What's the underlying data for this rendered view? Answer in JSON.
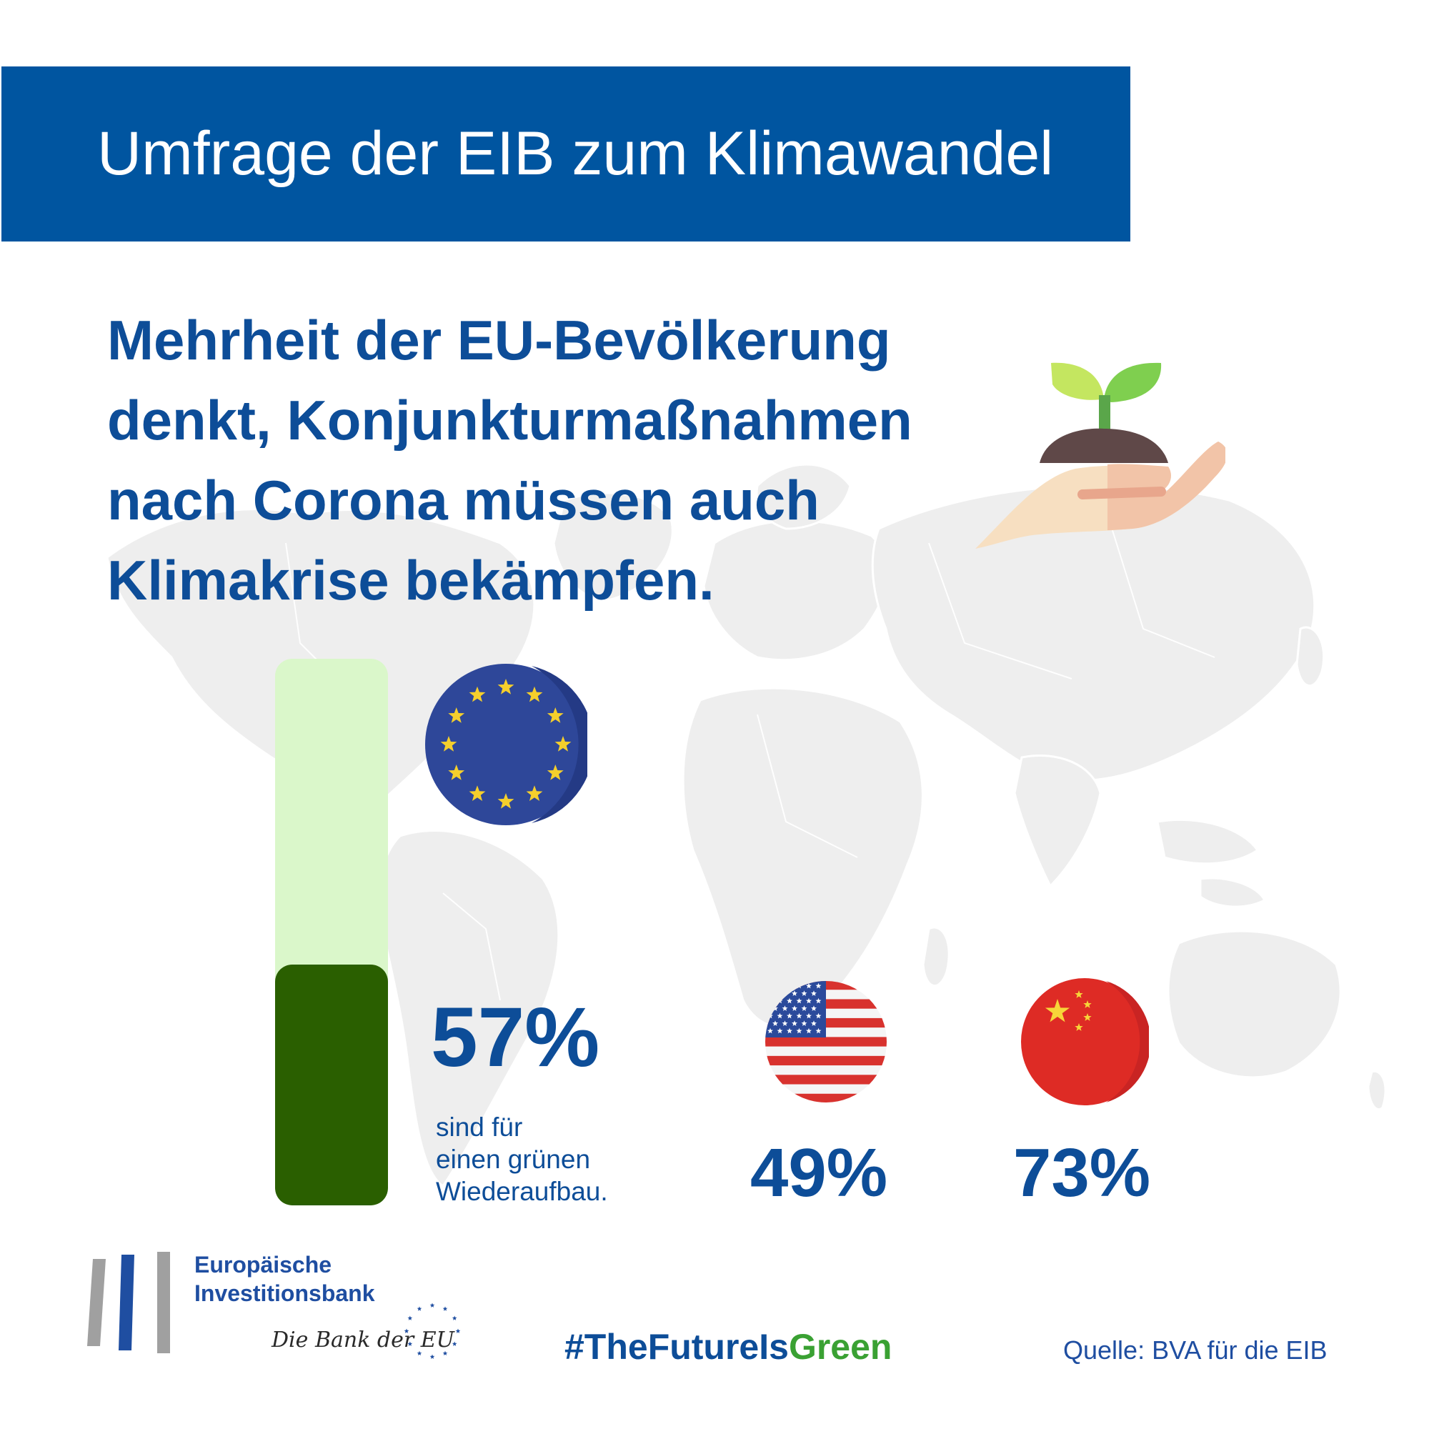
{
  "header": {
    "title": "Umfrage der EIB zum Klimawandel"
  },
  "headline": {
    "lines": [
      "Mehrheit der EU-Bevölkerung",
      "denkt, Konjunkturmaßnahmen",
      "nach Corona müssen auch",
      "Klimakrise bekämpfen."
    ]
  },
  "stats": {
    "eu": {
      "percent_label": "57%",
      "value": 57,
      "caption_lines": [
        "sind für",
        "einen grünen",
        "Wiederaufbau."
      ]
    },
    "us": {
      "percent_label": "49%",
      "value": 49
    },
    "china": {
      "percent_label": "73%",
      "value": 73
    }
  },
  "footer": {
    "org_name_lines": [
      "Europäische",
      "Investitionsbank"
    ],
    "org_tagline": "Die Bank der EU",
    "hashtag_prefix": "#TheFutureIs",
    "hashtag_suffix": "Green",
    "source": "Quelle: BVA für die EIB"
  },
  "colors": {
    "brand_blue": "#0055a0",
    "text_blue": "#0d4d98",
    "bar_fill": "#2a5f00",
    "bar_track": "#daf7ca",
    "hashtag_green": "#3aa133"
  },
  "icons": [
    "world-map",
    "plant-in-hand-icon",
    "eu-flag-icon",
    "us-flag-icon",
    "china-flag-icon",
    "eib-logo-icon"
  ]
}
